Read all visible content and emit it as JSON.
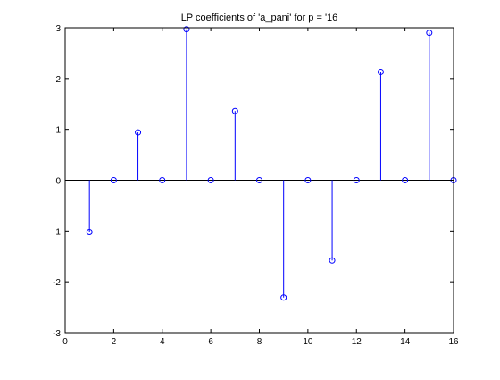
{
  "chart_data": {
    "type": "stem",
    "title": "LP coefficients of 'a_pani' for p = '16",
    "xlabel": "",
    "ylabel": "",
    "xlim": [
      0,
      16
    ],
    "ylim": [
      -3,
      3
    ],
    "x_ticks": [
      0,
      2,
      4,
      6,
      8,
      10,
      12,
      14,
      16
    ],
    "y_ticks": [
      -3,
      -2,
      -1,
      0,
      1,
      2,
      3
    ],
    "x_tick_labels": [
      "0",
      "2",
      "4",
      "6",
      "8",
      "10",
      "12",
      "14",
      "16"
    ],
    "y_tick_labels": [
      "-3",
      "-2",
      "-1",
      "0",
      "1",
      "2",
      "3"
    ],
    "x": [
      1,
      2,
      3,
      4,
      5,
      6,
      7,
      8,
      9,
      10,
      11,
      12,
      13,
      14,
      15,
      16
    ],
    "values": [
      -1.02,
      0,
      0.94,
      0,
      2.97,
      0,
      1.36,
      0,
      -2.31,
      0,
      -1.58,
      0,
      2.13,
      0,
      2.9,
      0
    ],
    "baseline": 0,
    "color": "#0000ff",
    "marker": "circle",
    "grid": false,
    "legend": "none"
  }
}
